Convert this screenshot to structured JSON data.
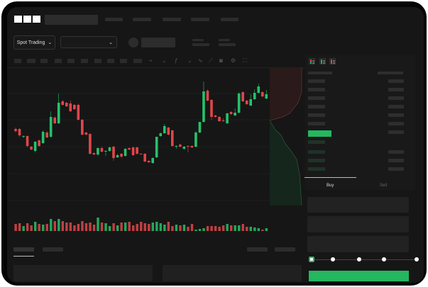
{
  "header": {
    "logo": "OKX",
    "trading_mode": "Spot Trading"
  },
  "order_form": {
    "tabs": [
      {
        "label": "Buy",
        "active": true
      },
      {
        "label": "Sell",
        "active": false
      }
    ],
    "slider_percent": 0,
    "submit_color": "#25b660"
  },
  "colors": {
    "up": "#25c26a",
    "down": "#e0464a",
    "background": "#161616",
    "accent": "#25b660"
  },
  "icons": {
    "orderbook_views": [
      "orderbook-both-icon",
      "orderbook-bids-icon",
      "orderbook-asks-icon"
    ],
    "toolbar": [
      "line-icon",
      "chevron-down-icon",
      "indicator-icon",
      "chevron-down-icon",
      "wave-icon",
      "ruler-icon",
      "camera-icon",
      "settings-icon",
      "fullscreen-icon"
    ]
  },
  "chart_data": {
    "type": "candlestick",
    "ohlc": [
      [
        68,
        70,
        63,
        65
      ],
      [
        68,
        69,
        57,
        59
      ],
      [
        57,
        59,
        55,
        58
      ],
      [
        58,
        59,
        42,
        44
      ],
      [
        43,
        44,
        38,
        39
      ],
      [
        37,
        51,
        35,
        50
      ],
      [
        52,
        53,
        43,
        44
      ],
      [
        48,
        66,
        47,
        64
      ],
      [
        63,
        65,
        55,
        56
      ],
      [
        57,
        93,
        56,
        85
      ],
      [
        84,
        86,
        75,
        76
      ],
      [
        76,
        118,
        75,
        105
      ],
      [
        107,
        109,
        101,
        102
      ],
      [
        105,
        106,
        99,
        100
      ],
      [
        104,
        108,
        92,
        93
      ],
      [
        102,
        103,
        95,
        96
      ],
      [
        102,
        104,
        80,
        81
      ],
      [
        81,
        82,
        59,
        60
      ],
      [
        63,
        64,
        59,
        60
      ],
      [
        61,
        62,
        32,
        33
      ],
      [
        34,
        35,
        31,
        32
      ],
      [
        32,
        42,
        30,
        41
      ],
      [
        41,
        43,
        35,
        36
      ],
      [
        36,
        38,
        30,
        37
      ],
      [
        37,
        43,
        36,
        42
      ],
      [
        43,
        44,
        23,
        27
      ],
      [
        28,
        33,
        27,
        31
      ],
      [
        33,
        34,
        27,
        29
      ],
      [
        30,
        41,
        29,
        40
      ],
      [
        41,
        42,
        38,
        39
      ],
      [
        42,
        43,
        30,
        31
      ],
      [
        42,
        43,
        32,
        33
      ],
      [
        33,
        34,
        32,
        32
      ],
      [
        33,
        34,
        21,
        22
      ],
      [
        23,
        24,
        20,
        21
      ],
      [
        20,
        28,
        19,
        27
      ],
      [
        28,
        57,
        27,
        57
      ],
      [
        58,
        63,
        57,
        62
      ],
      [
        62,
        75,
        61,
        72
      ],
      [
        70,
        71,
        59,
        60
      ],
      [
        66,
        67,
        43,
        44
      ],
      [
        43,
        45,
        40,
        44
      ],
      [
        46,
        47,
        42,
        43
      ],
      [
        40,
        44,
        39,
        43
      ],
      [
        44,
        45,
        35,
        43
      ],
      [
        44,
        45,
        41,
        42
      ],
      [
        43,
        65,
        42,
        63
      ],
      [
        63,
        78,
        62,
        78
      ],
      [
        78,
        135,
        77,
        121
      ],
      [
        122,
        124,
        107,
        108
      ],
      [
        109,
        110,
        81,
        85
      ],
      [
        87,
        88,
        84,
        85
      ],
      [
        85,
        86,
        78,
        79
      ],
      [
        80,
        83,
        78,
        79
      ],
      [
        76,
        91,
        75,
        90
      ],
      [
        92,
        93,
        88,
        89
      ],
      [
        87,
        97,
        86,
        91
      ],
      [
        91,
        120,
        90,
        118
      ],
      [
        120,
        121,
        106,
        107
      ],
      [
        108,
        109,
        102,
        103
      ],
      [
        101,
        117,
        100,
        110
      ],
      [
        110,
        124,
        109,
        119
      ],
      [
        119,
        132,
        118,
        128
      ],
      [
        120,
        121,
        113,
        114
      ],
      [
        111,
        123,
        110,
        117
      ]
    ],
    "volume": [
      10,
      11,
      7,
      11,
      8,
      13,
      10,
      9,
      10,
      17,
      14,
      17,
      14,
      12,
      12,
      8,
      10,
      14,
      11,
      12,
      9,
      19,
      12,
      11,
      7,
      11,
      8,
      12,
      12,
      13,
      8,
      10,
      13,
      11,
      10,
      12,
      13,
      11,
      9,
      13,
      7,
      9,
      8,
      9,
      6,
      10,
      2,
      3,
      4,
      7,
      7,
      7,
      6,
      8,
      10,
      8,
      8,
      8,
      10,
      6,
      6,
      5,
      4,
      2,
      4
    ],
    "grid": true
  }
}
